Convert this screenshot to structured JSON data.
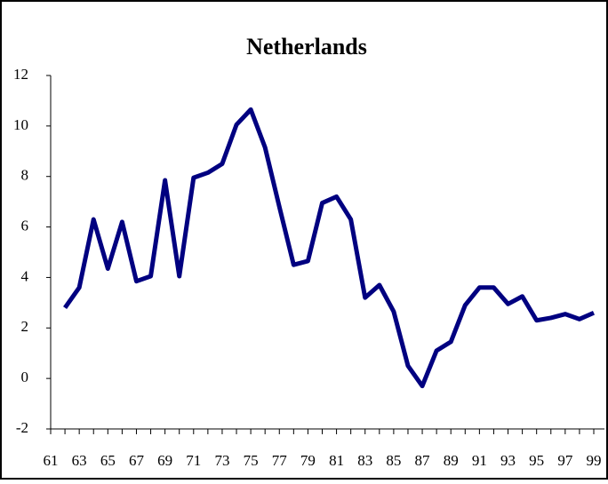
{
  "chart_data": {
    "type": "line",
    "title": "Netherlands",
    "categories": [
      "61",
      null,
      "63",
      null,
      "65",
      null,
      "67",
      null,
      "69",
      null,
      "71",
      null,
      "73",
      null,
      "75",
      null,
      "77",
      null,
      "79",
      null,
      "81",
      null,
      "83",
      null,
      "85",
      null,
      "87",
      null,
      "89",
      null,
      "91",
      null,
      "93",
      null,
      "95",
      null,
      "97",
      null,
      "99"
    ],
    "series": [
      {
        "name": "Netherlands",
        "color": "#000080",
        "values": [
          null,
          2.8,
          3.6,
          6.3,
          4.35,
          6.2,
          3.85,
          4.05,
          7.85,
          4.05,
          7.95,
          8.15,
          8.5,
          10.05,
          10.65,
          9.15,
          6.8,
          4.5,
          4.65,
          6.95,
          7.2,
          6.3,
          3.2,
          3.7,
          2.65,
          0.5,
          -0.3,
          1.1,
          1.45,
          2.9,
          3.6,
          3.6,
          2.95,
          3.25,
          2.3,
          2.4,
          2.55,
          2.35,
          2.6
        ]
      }
    ],
    "ylim": [
      -2,
      12
    ],
    "yticks": [
      -2,
      0,
      2,
      4,
      6,
      8,
      10,
      12
    ],
    "grid": false
  }
}
